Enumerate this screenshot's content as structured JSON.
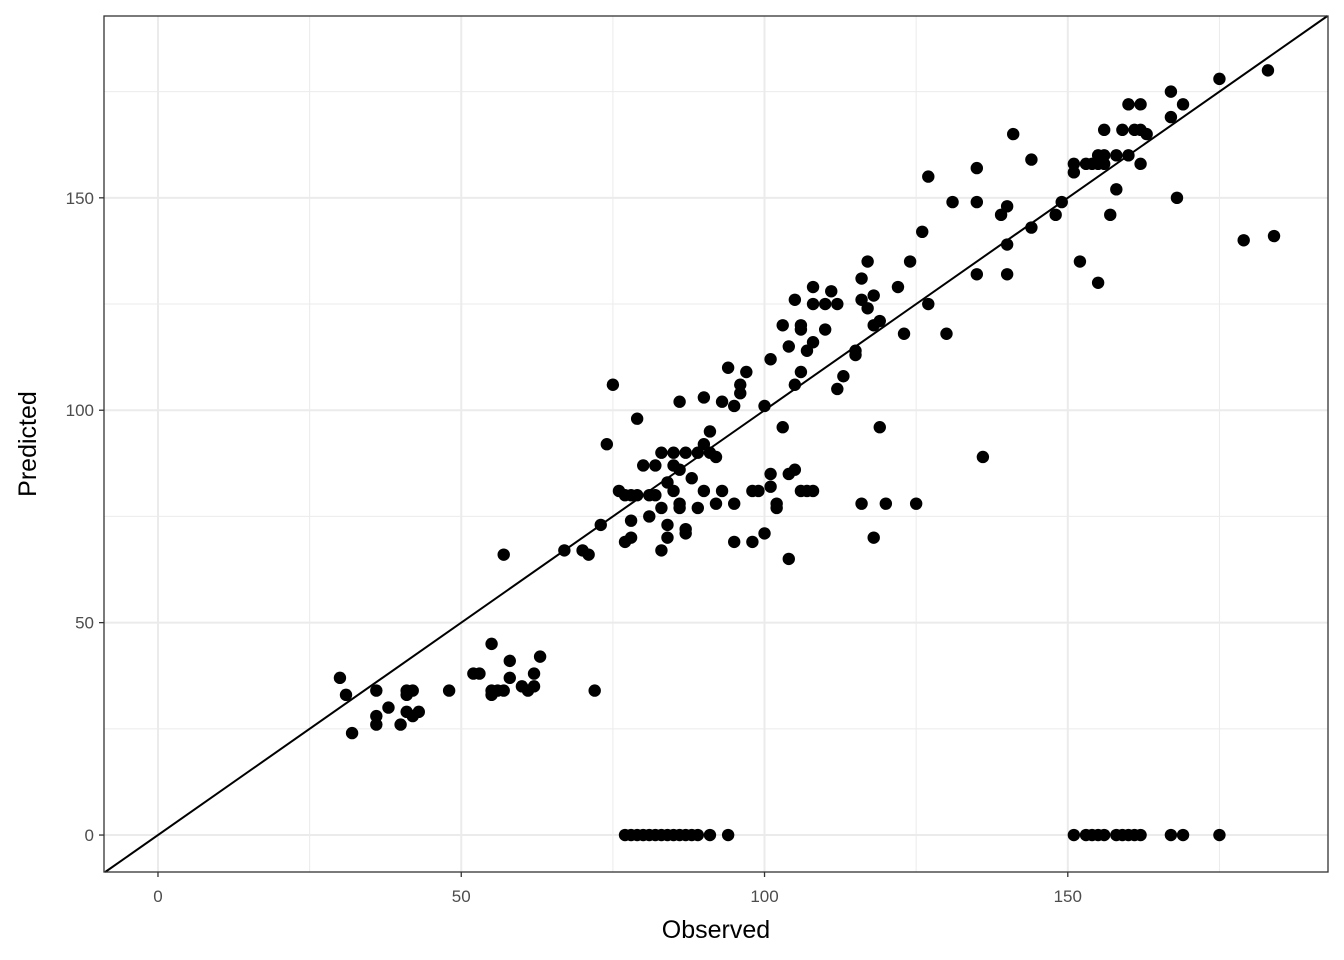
{
  "chart_data": {
    "type": "scatter",
    "title": "",
    "xlabel": "Observed",
    "ylabel": "Predicted",
    "xlim": [
      -8.9,
      192.9
    ],
    "ylim": [
      -8.7,
      192.8
    ],
    "xticks": [
      0,
      50,
      100,
      150
    ],
    "yticks": [
      0,
      50,
      100,
      150
    ],
    "xtick_labels": [
      "0",
      "50",
      "100",
      "150"
    ],
    "ytick_labels": [
      "0",
      "50",
      "100",
      "150"
    ],
    "grid": true,
    "theme": "bw",
    "reference_line": {
      "type": "identity",
      "slope": 1,
      "intercept": 0
    },
    "point_color": "#000000",
    "points": [
      [
        30,
        37
      ],
      [
        31,
        33
      ],
      [
        32,
        24
      ],
      [
        36,
        34
      ],
      [
        36,
        28
      ],
      [
        36,
        26
      ],
      [
        38,
        30
      ],
      [
        40,
        26
      ],
      [
        41,
        34
      ],
      [
        41,
        29
      ],
      [
        41,
        33
      ],
      [
        42,
        34
      ],
      [
        42,
        28
      ],
      [
        43,
        29
      ],
      [
        48,
        34
      ],
      [
        52,
        38
      ],
      [
        53,
        38
      ],
      [
        55,
        45
      ],
      [
        55,
        34
      ],
      [
        55,
        33
      ],
      [
        56,
        34
      ],
      [
        57,
        34
      ],
      [
        58,
        41
      ],
      [
        58,
        37
      ],
      [
        60,
        35
      ],
      [
        61,
        34
      ],
      [
        62,
        38
      ],
      [
        62,
        35
      ],
      [
        63,
        42
      ],
      [
        72,
        34
      ],
      [
        57,
        66
      ],
      [
        67,
        67
      ],
      [
        70,
        67
      ],
      [
        71,
        66
      ],
      [
        73,
        73
      ],
      [
        74,
        92
      ],
      [
        75,
        106
      ],
      [
        76,
        81
      ],
      [
        77,
        69
      ],
      [
        77,
        80
      ],
      [
        78,
        70
      ],
      [
        78,
        74
      ],
      [
        79,
        98
      ],
      [
        78,
        80
      ],
      [
        79,
        80
      ],
      [
        80,
        87
      ],
      [
        81,
        75
      ],
      [
        81,
        80
      ],
      [
        82,
        87
      ],
      [
        82,
        80
      ],
      [
        83,
        67
      ],
      [
        83,
        77
      ],
      [
        83,
        90
      ],
      [
        84,
        73
      ],
      [
        84,
        70
      ],
      [
        84,
        83
      ],
      [
        85,
        87
      ],
      [
        85,
        90
      ],
      [
        85,
        81
      ],
      [
        86,
        78
      ],
      [
        86,
        86
      ],
      [
        86,
        102
      ],
      [
        86,
        77
      ],
      [
        87,
        72
      ],
      [
        87,
        71
      ],
      [
        87,
        90
      ],
      [
        88,
        84
      ],
      [
        89,
        90
      ],
      [
        89,
        77
      ],
      [
        90,
        103
      ],
      [
        90,
        92
      ],
      [
        90,
        81
      ],
      [
        91,
        90
      ],
      [
        91,
        95
      ],
      [
        92,
        78
      ],
      [
        92,
        89
      ],
      [
        93,
        81
      ],
      [
        93,
        102
      ],
      [
        94,
        110
      ],
      [
        95,
        101
      ],
      [
        96,
        106
      ],
      [
        96,
        104
      ],
      [
        95,
        78
      ],
      [
        95,
        69
      ],
      [
        97,
        109
      ],
      [
        98,
        69
      ],
      [
        98,
        81
      ],
      [
        99,
        81
      ],
      [
        100,
        101
      ],
      [
        100,
        71
      ],
      [
        101,
        112
      ],
      [
        101,
        85
      ],
      [
        101,
        82
      ],
      [
        102,
        78
      ],
      [
        102,
        77
      ],
      [
        103,
        96
      ],
      [
        103,
        120
      ],
      [
        104,
        115
      ],
      [
        104,
        65
      ],
      [
        104,
        85
      ],
      [
        105,
        86
      ],
      [
        105,
        126
      ],
      [
        105,
        106
      ],
      [
        106,
        120
      ],
      [
        106,
        119
      ],
      [
        106,
        109
      ],
      [
        106,
        81
      ],
      [
        107,
        114
      ],
      [
        108,
        116
      ],
      [
        108,
        129
      ],
      [
        108,
        125
      ],
      [
        107,
        81
      ],
      [
        108,
        81
      ],
      [
        110,
        119
      ],
      [
        110,
        125
      ],
      [
        111,
        128
      ],
      [
        112,
        125
      ],
      [
        112,
        105
      ],
      [
        113,
        108
      ],
      [
        115,
        114
      ],
      [
        115,
        113
      ],
      [
        116,
        131
      ],
      [
        116,
        126
      ],
      [
        116,
        78
      ],
      [
        117,
        135
      ],
      [
        117,
        124
      ],
      [
        118,
        127
      ],
      [
        118,
        120
      ],
      [
        118,
        70
      ],
      [
        119,
        121
      ],
      [
        119,
        96
      ],
      [
        120,
        78
      ],
      [
        122,
        129
      ],
      [
        123,
        118
      ],
      [
        124,
        135
      ],
      [
        125,
        78
      ],
      [
        126,
        142
      ],
      [
        127,
        155
      ],
      [
        127,
        125
      ],
      [
        130,
        118
      ],
      [
        131,
        149
      ],
      [
        135,
        157
      ],
      [
        135,
        149
      ],
      [
        135,
        132
      ],
      [
        136,
        89
      ],
      [
        139,
        146
      ],
      [
        140,
        139
      ],
      [
        140,
        148
      ],
      [
        140,
        132
      ],
      [
        141,
        165
      ],
      [
        144,
        159
      ],
      [
        144,
        143
      ],
      [
        148,
        146
      ],
      [
        149,
        149
      ],
      [
        151,
        158
      ],
      [
        151,
        156
      ],
      [
        152,
        135
      ],
      [
        153,
        158
      ],
      [
        154,
        158
      ],
      [
        155,
        130
      ],
      [
        155,
        160
      ],
      [
        155,
        158
      ],
      [
        156,
        160
      ],
      [
        156,
        166
      ],
      [
        156,
        158
      ],
      [
        157,
        146
      ],
      [
        158,
        152
      ],
      [
        158,
        160
      ],
      [
        159,
        166
      ],
      [
        160,
        172
      ],
      [
        160,
        160
      ],
      [
        161,
        166
      ],
      [
        162,
        172
      ],
      [
        162,
        166
      ],
      [
        162,
        158
      ],
      [
        163,
        165
      ],
      [
        167,
        175
      ],
      [
        167,
        169
      ],
      [
        168,
        150
      ],
      [
        169,
        172
      ],
      [
        175,
        178
      ],
      [
        179,
        140
      ],
      [
        183,
        180
      ],
      [
        184,
        141
      ],
      [
        77,
        0
      ],
      [
        78,
        0
      ],
      [
        79,
        0
      ],
      [
        80,
        0
      ],
      [
        81,
        0
      ],
      [
        82,
        0
      ],
      [
        83,
        0
      ],
      [
        84,
        0
      ],
      [
        85,
        0
      ],
      [
        86,
        0
      ],
      [
        87,
        0
      ],
      [
        88,
        0
      ],
      [
        89,
        0
      ],
      [
        91,
        0
      ],
      [
        94,
        0
      ],
      [
        151,
        0
      ],
      [
        153,
        0
      ],
      [
        154,
        0
      ],
      [
        155,
        0
      ],
      [
        156,
        0
      ],
      [
        158,
        0
      ],
      [
        159,
        0
      ],
      [
        160,
        0
      ],
      [
        161,
        0
      ],
      [
        162,
        0
      ],
      [
        167,
        0
      ],
      [
        169,
        0
      ],
      [
        175,
        0
      ]
    ]
  }
}
